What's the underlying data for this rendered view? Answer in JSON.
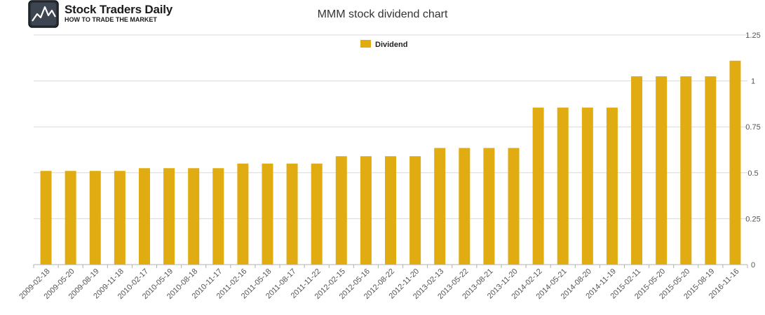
{
  "brand": {
    "name": "Stock Traders Daily",
    "tagline": "HOW TO TRADE THE MARKET",
    "icon": "chart-line-logo-icon"
  },
  "chart_data": {
    "type": "bar",
    "title": "MMM stock dividend chart",
    "xlabel": "",
    "ylabel": "",
    "ylim": [
      0,
      1.25
    ],
    "yticks": [
      "0",
      "0.25",
      "0.5",
      "0.75",
      "1",
      "1.25"
    ],
    "y_axis_side": "right",
    "grid": true,
    "legend_position": "top-center",
    "bar_color": "#E0AC12",
    "categories": [
      "2009-02-18",
      "2009-05-20",
      "2009-08-19",
      "2009-11-18",
      "2010-02-17",
      "2010-05-19",
      "2010-08-18",
      "2010-11-17",
      "2011-02-16",
      "2011-05-18",
      "2011-08-17",
      "2011-11-22",
      "2012-02-15",
      "2012-05-16",
      "2012-08-22",
      "2012-11-20",
      "2013-02-13",
      "2013-05-22",
      "2013-08-21",
      "2013-11-20",
      "2014-02-12",
      "2014-05-21",
      "2014-08-20",
      "2014-11-19",
      "2015-02-11",
      "2015-05-20",
      "2015-05-20",
      "2015-08-19",
      "2016-11-16"
    ],
    "series": [
      {
        "name": "Dividend",
        "values": [
          0.51,
          0.51,
          0.51,
          0.51,
          0.525,
          0.525,
          0.525,
          0.525,
          0.55,
          0.55,
          0.55,
          0.55,
          0.59,
          0.59,
          0.59,
          0.59,
          0.635,
          0.635,
          0.635,
          0.635,
          0.855,
          0.855,
          0.855,
          0.855,
          1.025,
          1.025,
          1.025,
          1.025,
          1.11
        ]
      }
    ]
  }
}
